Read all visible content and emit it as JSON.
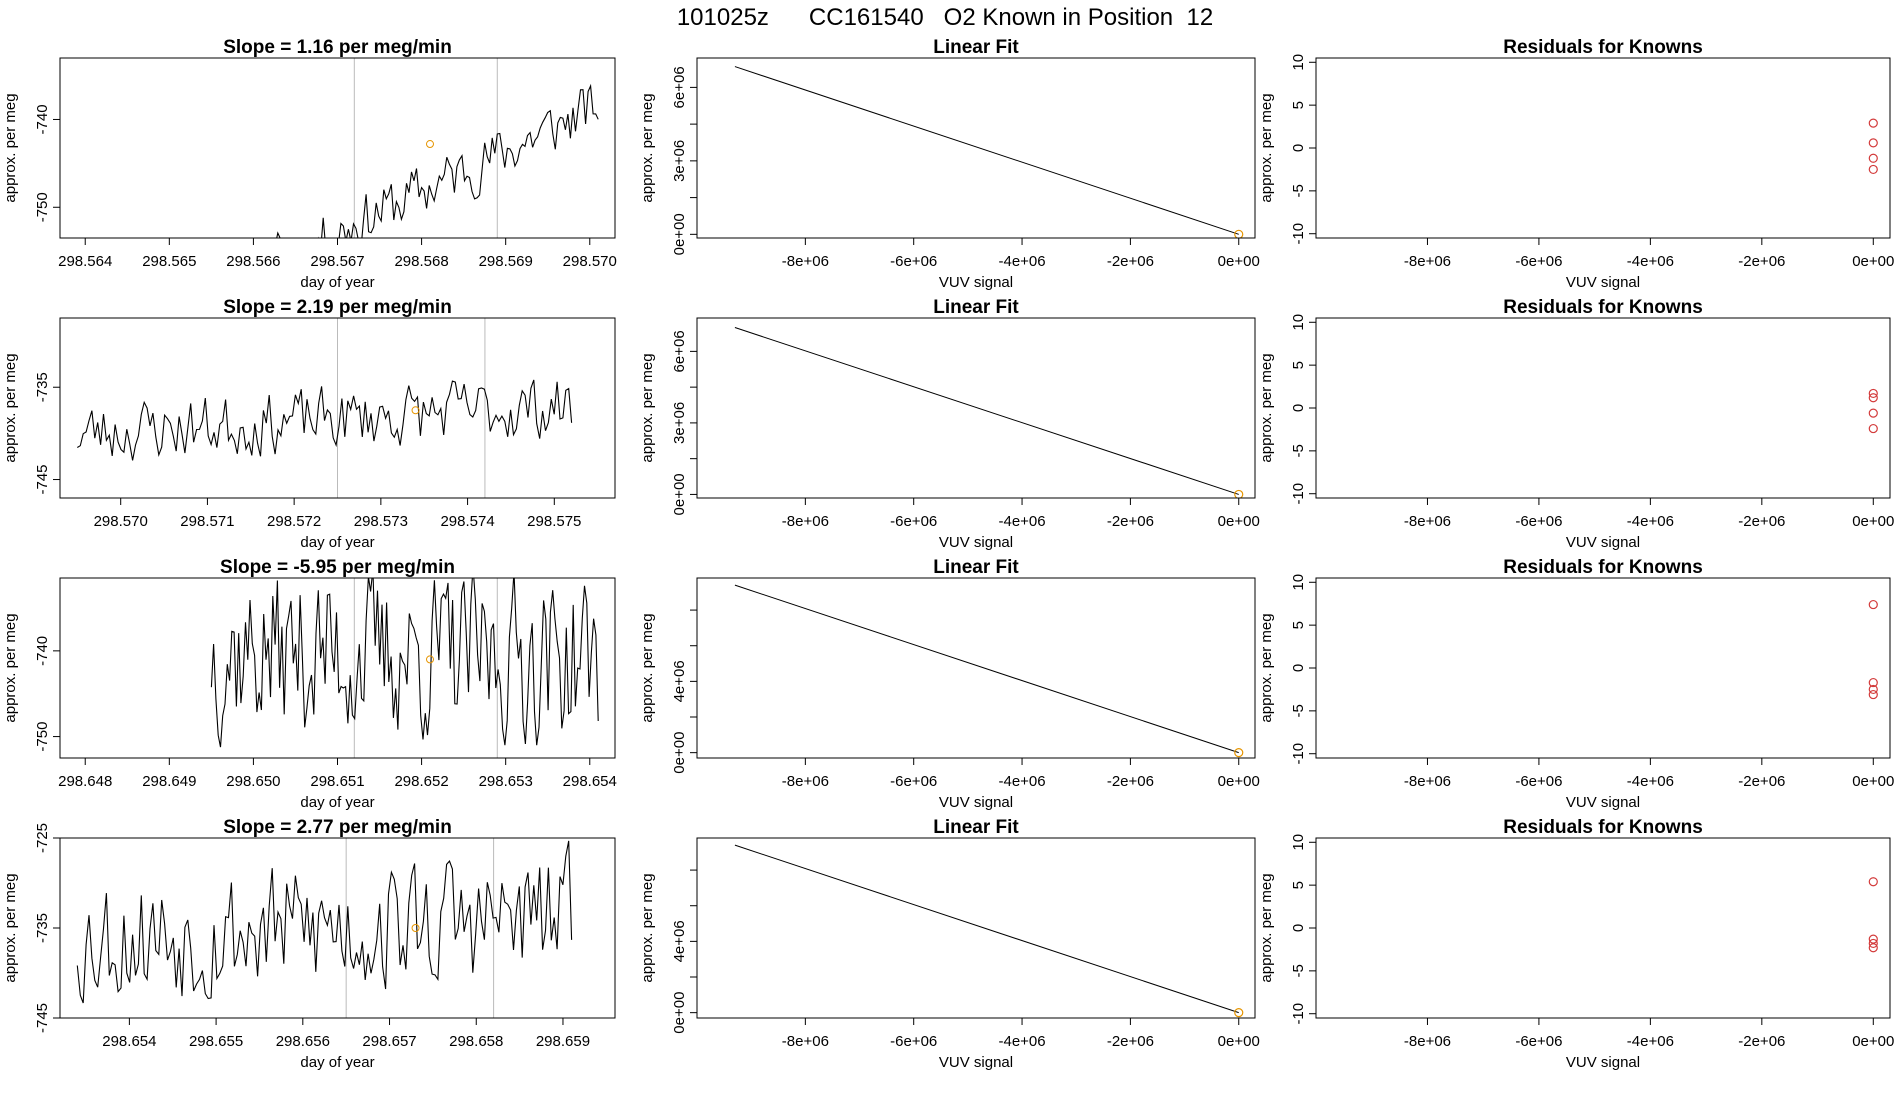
{
  "page": {
    "title": "101025z      CC161540   O2 Known in Position  12"
  },
  "colors": {
    "trace": "#000000",
    "marker_orange": "#e69500",
    "marker_red": "#d33b3b",
    "vline": "#bbbbbb"
  },
  "chart_data": [
    {
      "type": "line",
      "title": "Slope =  1.16  per meg/min",
      "xlabel": "day of year",
      "ylabel": "approx. per meg",
      "xlim": [
        298.5637,
        298.5703
      ],
      "ylim": [
        -753.5,
        -733
      ],
      "xticks": [
        298.564,
        298.565,
        298.566,
        298.567,
        298.568,
        298.569,
        298.57
      ],
      "xtick_labels": [
        "298.564",
        "298.565",
        "298.566",
        "298.567",
        "298.568",
        "298.569",
        "298.570"
      ],
      "yticks": [
        -750,
        -740
      ],
      "ytick_labels": [
        "-750",
        "-740"
      ],
      "vlines": [
        298.5672,
        298.5689
      ],
      "x_start": 298.565,
      "x_end": 298.5701,
      "trend_start": -762,
      "trend_end": -738.5,
      "noise": 2.8,
      "seed": 11,
      "marker": {
        "x": 298.5681,
        "y": -742.8
      }
    },
    {
      "type": "linear_fit",
      "title": "Linear Fit",
      "xlabel": "VUV signal",
      "ylabel": "approx. per meg",
      "xlim": [
        -10000000,
        300000
      ],
      "ylim": [
        -150000,
        7200000
      ],
      "xticks": [
        -8000000,
        -6000000,
        -4000000,
        -2000000,
        0
      ],
      "xtick_labels": [
        "-8e+06",
        "-6e+06",
        "-4e+06",
        "-2e+06",
        "0e+00"
      ],
      "yticks": [
        0,
        1500000,
        3000000,
        4500000,
        6000000
      ],
      "ytick_labels": [
        "0e+00",
        "",
        "3e+06",
        "",
        "6e+06"
      ],
      "line": [
        [
          -9300000,
          6850000
        ],
        [
          0,
          0
        ]
      ],
      "points": [
        [
          0,
          0
        ]
      ]
    },
    {
      "type": "scatter",
      "title": "Residuals for Knowns",
      "xlabel": "VUV signal",
      "ylabel": "approx. per meg",
      "xlim": [
        -10000000,
        300000
      ],
      "ylim": [
        -10.5,
        10.5
      ],
      "xticks": [
        -8000000,
        -6000000,
        -4000000,
        -2000000,
        0
      ],
      "xtick_labels": [
        "-8e+06",
        "-6e+06",
        "-4e+06",
        "-2e+06",
        "0e+00"
      ],
      "yticks": [
        -10,
        -5,
        0,
        5,
        10
      ],
      "ytick_labels": [
        "-10",
        "-5",
        "0",
        "5",
        "10"
      ],
      "points": [
        [
          0,
          2.9
        ],
        [
          0,
          0.6
        ],
        [
          0,
          -1.2
        ],
        [
          0,
          -2.5
        ]
      ]
    },
    {
      "type": "line",
      "title": "Slope =  2.19  per meg/min",
      "xlabel": "day of year",
      "ylabel": "approx. per meg",
      "xlim": [
        298.5693,
        298.5757
      ],
      "ylim": [
        -747,
        -727.5
      ],
      "xticks": [
        298.57,
        298.571,
        298.572,
        298.573,
        298.574,
        298.575
      ],
      "xtick_labels": [
        "298.570",
        "298.571",
        "298.572",
        "298.573",
        "298.574",
        "298.575"
      ],
      "yticks": [
        -745,
        -735
      ],
      "ytick_labels": [
        "-745",
        "-735"
      ],
      "vlines": [
        298.5725,
        298.5742
      ],
      "x_start": 298.5695,
      "x_end": 298.5752,
      "trend_start": -740,
      "trend_end": -737,
      "noise": 3.0,
      "seed": 23,
      "marker": {
        "x": 298.5734,
        "y": -737.5
      }
    },
    {
      "type": "linear_fit",
      "title": "Linear Fit",
      "xlabel": "VUV signal",
      "ylabel": "approx. per meg",
      "xlim": [
        -10000000,
        300000
      ],
      "ylim": [
        -150000,
        7400000
      ],
      "xticks": [
        -8000000,
        -6000000,
        -4000000,
        -2000000,
        0
      ],
      "xtick_labels": [
        "-8e+06",
        "-6e+06",
        "-4e+06",
        "-2e+06",
        "0e+00"
      ],
      "yticks": [
        0,
        1500000,
        3000000,
        4500000,
        6000000
      ],
      "ytick_labels": [
        "0e+00",
        "",
        "3e+06",
        "",
        "6e+06"
      ],
      "line": [
        [
          -9300000,
          7000000
        ],
        [
          0,
          0
        ]
      ],
      "points": [
        [
          0,
          0
        ]
      ]
    },
    {
      "type": "scatter",
      "title": "Residuals for Knowns",
      "xlabel": "VUV signal",
      "ylabel": "approx. per meg",
      "xlim": [
        -10000000,
        300000
      ],
      "ylim": [
        -10.5,
        10.5
      ],
      "xticks": [
        -8000000,
        -6000000,
        -4000000,
        -2000000,
        0
      ],
      "xtick_labels": [
        "-8e+06",
        "-6e+06",
        "-4e+06",
        "-2e+06",
        "0e+00"
      ],
      "yticks": [
        -10,
        -5,
        0,
        5,
        10
      ],
      "ytick_labels": [
        "-10",
        "-5",
        "0",
        "5",
        "10"
      ],
      "points": [
        [
          0,
          1.7
        ],
        [
          0,
          1.2
        ],
        [
          0,
          -0.6
        ],
        [
          0,
          -2.4
        ]
      ]
    },
    {
      "type": "line",
      "title": "Slope =  -5.95  per meg/min",
      "xlabel": "day of year",
      "ylabel": "approx. per meg",
      "xlim": [
        298.6477,
        298.6543
      ],
      "ylim": [
        -752.5,
        -731.5
      ],
      "xticks": [
        298.648,
        298.649,
        298.65,
        298.651,
        298.652,
        298.653,
        298.654
      ],
      "xtick_labels": [
        "298.648",
        "298.649",
        "298.650",
        "298.651",
        "298.652",
        "298.653",
        "298.654"
      ],
      "yticks": [
        -750,
        -740
      ],
      "ytick_labels": [
        "-750",
        "-740"
      ],
      "vlines": [
        298.6512,
        298.6529
      ],
      "x_start": 298.6495,
      "x_end": 298.6541,
      "trend_start": -740,
      "trend_end": -741,
      "noise": 8.5,
      "seed": 37,
      "marker": {
        "x": 298.6521,
        "y": -741.0
      }
    },
    {
      "type": "linear_fit",
      "title": "Linear Fit",
      "xlabel": "VUV signal",
      "ylabel": "approx. per meg",
      "xlim": [
        -10000000,
        300000
      ],
      "ylim": [
        -300000,
        9800000
      ],
      "xticks": [
        -8000000,
        -6000000,
        -4000000,
        -2000000,
        0
      ],
      "xtick_labels": [
        "-8e+06",
        "-6e+06",
        "-4e+06",
        "-2e+06",
        "0e+00"
      ],
      "yticks": [
        0,
        2000000,
        4000000,
        6000000,
        8000000
      ],
      "ytick_labels": [
        "0e+00",
        "",
        "4e+06",
        "",
        ""
      ],
      "line": [
        [
          -9300000,
          9400000
        ],
        [
          0,
          0
        ]
      ],
      "points": [
        [
          0,
          0
        ]
      ]
    },
    {
      "type": "scatter",
      "title": "Residuals for Knowns",
      "xlabel": "VUV signal",
      "ylabel": "approx. per meg",
      "xlim": [
        -10000000,
        300000
      ],
      "ylim": [
        -10.5,
        10.5
      ],
      "xticks": [
        -8000000,
        -6000000,
        -4000000,
        -2000000,
        0
      ],
      "xtick_labels": [
        "-8e+06",
        "-6e+06",
        "-4e+06",
        "-2e+06",
        "0e+00"
      ],
      "yticks": [
        -10,
        -5,
        0,
        5,
        10
      ],
      "ytick_labels": [
        "-10",
        "-5",
        "0",
        "5",
        "10"
      ],
      "points": [
        [
          0,
          7.4
        ],
        [
          0,
          -1.7
        ],
        [
          0,
          -2.5
        ],
        [
          0,
          -3.1
        ]
      ]
    },
    {
      "type": "line",
      "title": "Slope =  2.77  per meg/min",
      "xlabel": "day of year",
      "ylabel": "approx. per meg",
      "xlim": [
        298.6532,
        298.6596
      ],
      "ylim": [
        -745,
        -725
      ],
      "xticks": [
        298.654,
        298.655,
        298.656,
        298.657,
        298.658,
        298.659
      ],
      "xtick_labels": [
        "298.654",
        "298.655",
        "298.656",
        "298.657",
        "298.658",
        "298.659"
      ],
      "yticks": [
        -745,
        -735,
        -725
      ],
      "ytick_labels": [
        "-745",
        "-735",
        "-725"
      ],
      "vlines": [
        298.6565,
        298.6582
      ],
      "x_start": 298.6534,
      "x_end": 298.6591,
      "trend_start": -736,
      "trend_end": -734,
      "noise": 6.5,
      "seed": 53,
      "marker": {
        "x": 298.6573,
        "y": -735.0
      }
    },
    {
      "type": "linear_fit",
      "title": "Linear Fit",
      "xlabel": "VUV signal",
      "ylabel": "approx. per meg",
      "xlim": [
        -10000000,
        300000
      ],
      "ylim": [
        -300000,
        9800000
      ],
      "xticks": [
        -8000000,
        -6000000,
        -4000000,
        -2000000,
        0
      ],
      "xtick_labels": [
        "-8e+06",
        "-6e+06",
        "-4e+06",
        "-2e+06",
        "0e+00"
      ],
      "yticks": [
        0,
        2000000,
        4000000,
        6000000,
        8000000
      ],
      "ytick_labels": [
        "0e+00",
        "",
        "4e+06",
        "",
        ""
      ],
      "line": [
        [
          -9300000,
          9400000
        ],
        [
          0,
          0
        ]
      ],
      "points": [
        [
          0,
          0
        ]
      ]
    },
    {
      "type": "scatter",
      "title": "Residuals for Knowns",
      "xlabel": "VUV signal",
      "ylabel": "approx. per meg",
      "xlim": [
        -10000000,
        300000
      ],
      "ylim": [
        -10.5,
        10.5
      ],
      "xticks": [
        -8000000,
        -6000000,
        -4000000,
        -2000000,
        0
      ],
      "xtick_labels": [
        "-8e+06",
        "-6e+06",
        "-4e+06",
        "-2e+06",
        "0e+00"
      ],
      "yticks": [
        -10,
        -5,
        0,
        5,
        10
      ],
      "ytick_labels": [
        "-10",
        "-5",
        "0",
        "5",
        "10"
      ],
      "points": [
        [
          0,
          5.4
        ],
        [
          0,
          -1.3
        ],
        [
          0,
          -1.8
        ],
        [
          0,
          -2.3
        ]
      ]
    }
  ]
}
